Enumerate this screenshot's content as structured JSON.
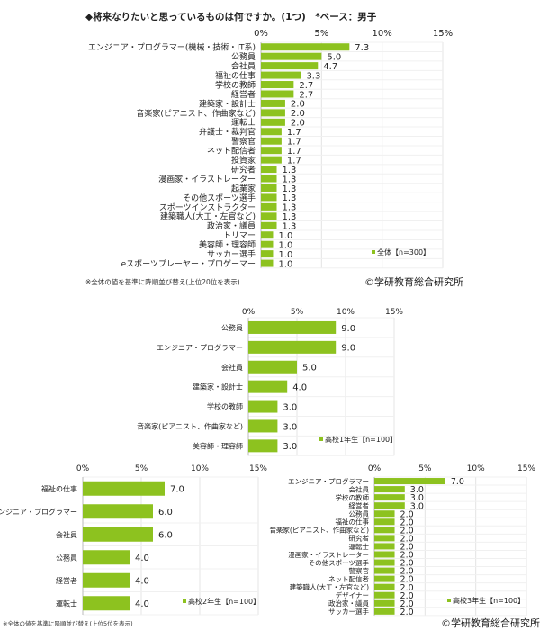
{
  "header": {
    "title": "◆将来なりたいと思っているものは何ですか。(1つ)　*ベース：男子"
  },
  "colors": {
    "bar": "#8dc21f",
    "grid": "#e4e4e4",
    "text": "#222222"
  },
  "footnotes": {
    "top": "※全体の値を基準に降順並び替え(上位20位を表示)",
    "bottom_left": "※全体の値を基準に降順並び替え(上位5位を表示)",
    "copyright_top": "©学研教育総合研究所",
    "copyright_bottom": "©学研教育総合研究所"
  },
  "chart_data": [
    {
      "type": "bar",
      "orientation": "horizontal",
      "legend": "全体【n=300】",
      "legend_position": "bottom-right",
      "xlim": [
        0,
        15
      ],
      "ticks": [
        "0%",
        "5%",
        "10%",
        "15%"
      ],
      "grid": true,
      "categories": [
        "エンジニア・プログラマー(機械・技術・IT系)",
        "公務員",
        "会社員",
        "福祉の仕事",
        "学校の教師",
        "経営者",
        "建築家・設計士",
        "音楽家(ピアニスト、作曲家など)",
        "運転士",
        "弁護士・裁判官",
        "警察官",
        "ネット配信者",
        "投資家",
        "研究者",
        "漫画家・イラストレーター",
        "起業家",
        "その他スポーツ選手",
        "スポーツインストラクター",
        "建築職人(大工・左官など)",
        "政治家・議員",
        "トリマー",
        "美容師・理容師",
        "サッカー選手",
        "eスポーツプレーヤー・プロゲーマー"
      ],
      "values": [
        7.3,
        5.0,
        4.7,
        3.3,
        2.7,
        2.7,
        2.0,
        2.0,
        2.0,
        1.7,
        1.7,
        1.7,
        1.7,
        1.3,
        1.3,
        1.3,
        1.3,
        1.3,
        1.3,
        1.3,
        1.0,
        1.0,
        1.0,
        1.0
      ]
    },
    {
      "type": "bar",
      "orientation": "horizontal",
      "legend": "高校1年生【n=100】",
      "legend_position": "bottom-right",
      "xlim": [
        0,
        15
      ],
      "ticks": [
        "0%",
        "5%",
        "10%",
        "15%"
      ],
      "grid": true,
      "categories": [
        "公務員",
        "エンジニア・プログラマー",
        "会社員",
        "建築家・設計士",
        "学校の教師",
        "音楽家(ピアニスト、作曲家など)",
        "美容師・理容師"
      ],
      "values": [
        9.0,
        9.0,
        5.0,
        4.0,
        3.0,
        3.0,
        3.0
      ]
    },
    {
      "type": "bar",
      "orientation": "horizontal",
      "legend": "高校2年生【n=100】",
      "legend_position": "bottom-right",
      "xlim": [
        0,
        15
      ],
      "ticks": [
        "0%",
        "5%",
        "10%",
        "15%"
      ],
      "grid": true,
      "categories": [
        "福祉の仕事",
        "エンジニア・プログラマー",
        "会社員",
        "公務員",
        "経営者",
        "運転士"
      ],
      "values": [
        7.0,
        6.0,
        6.0,
        4.0,
        4.0,
        4.0
      ]
    },
    {
      "type": "bar",
      "orientation": "horizontal",
      "legend": "高校3年生【n=100】",
      "legend_position": "bottom-right",
      "xlim": [
        0,
        15
      ],
      "ticks": [
        "0%",
        "5%",
        "10%",
        "15%"
      ],
      "grid": true,
      "categories": [
        "エンジニア・プログラマー",
        "会社員",
        "学校の教師",
        "経営者",
        "公務員",
        "福祉の仕事",
        "音楽家(ピアニスト、作曲家など)",
        "研究者",
        "運転士",
        "漫画家・イラストレーター",
        "その他スポーツ選手",
        "警察官",
        "ネット配信者",
        "建築職人(大工・左官など)",
        "デザイナー",
        "政治家・議員",
        "サッカー選手"
      ],
      "values": [
        7.0,
        3.0,
        3.0,
        3.0,
        2.0,
        2.0,
        2.0,
        2.0,
        2.0,
        2.0,
        2.0,
        2.0,
        2.0,
        2.0,
        2.0,
        2.0,
        2.0
      ]
    }
  ]
}
